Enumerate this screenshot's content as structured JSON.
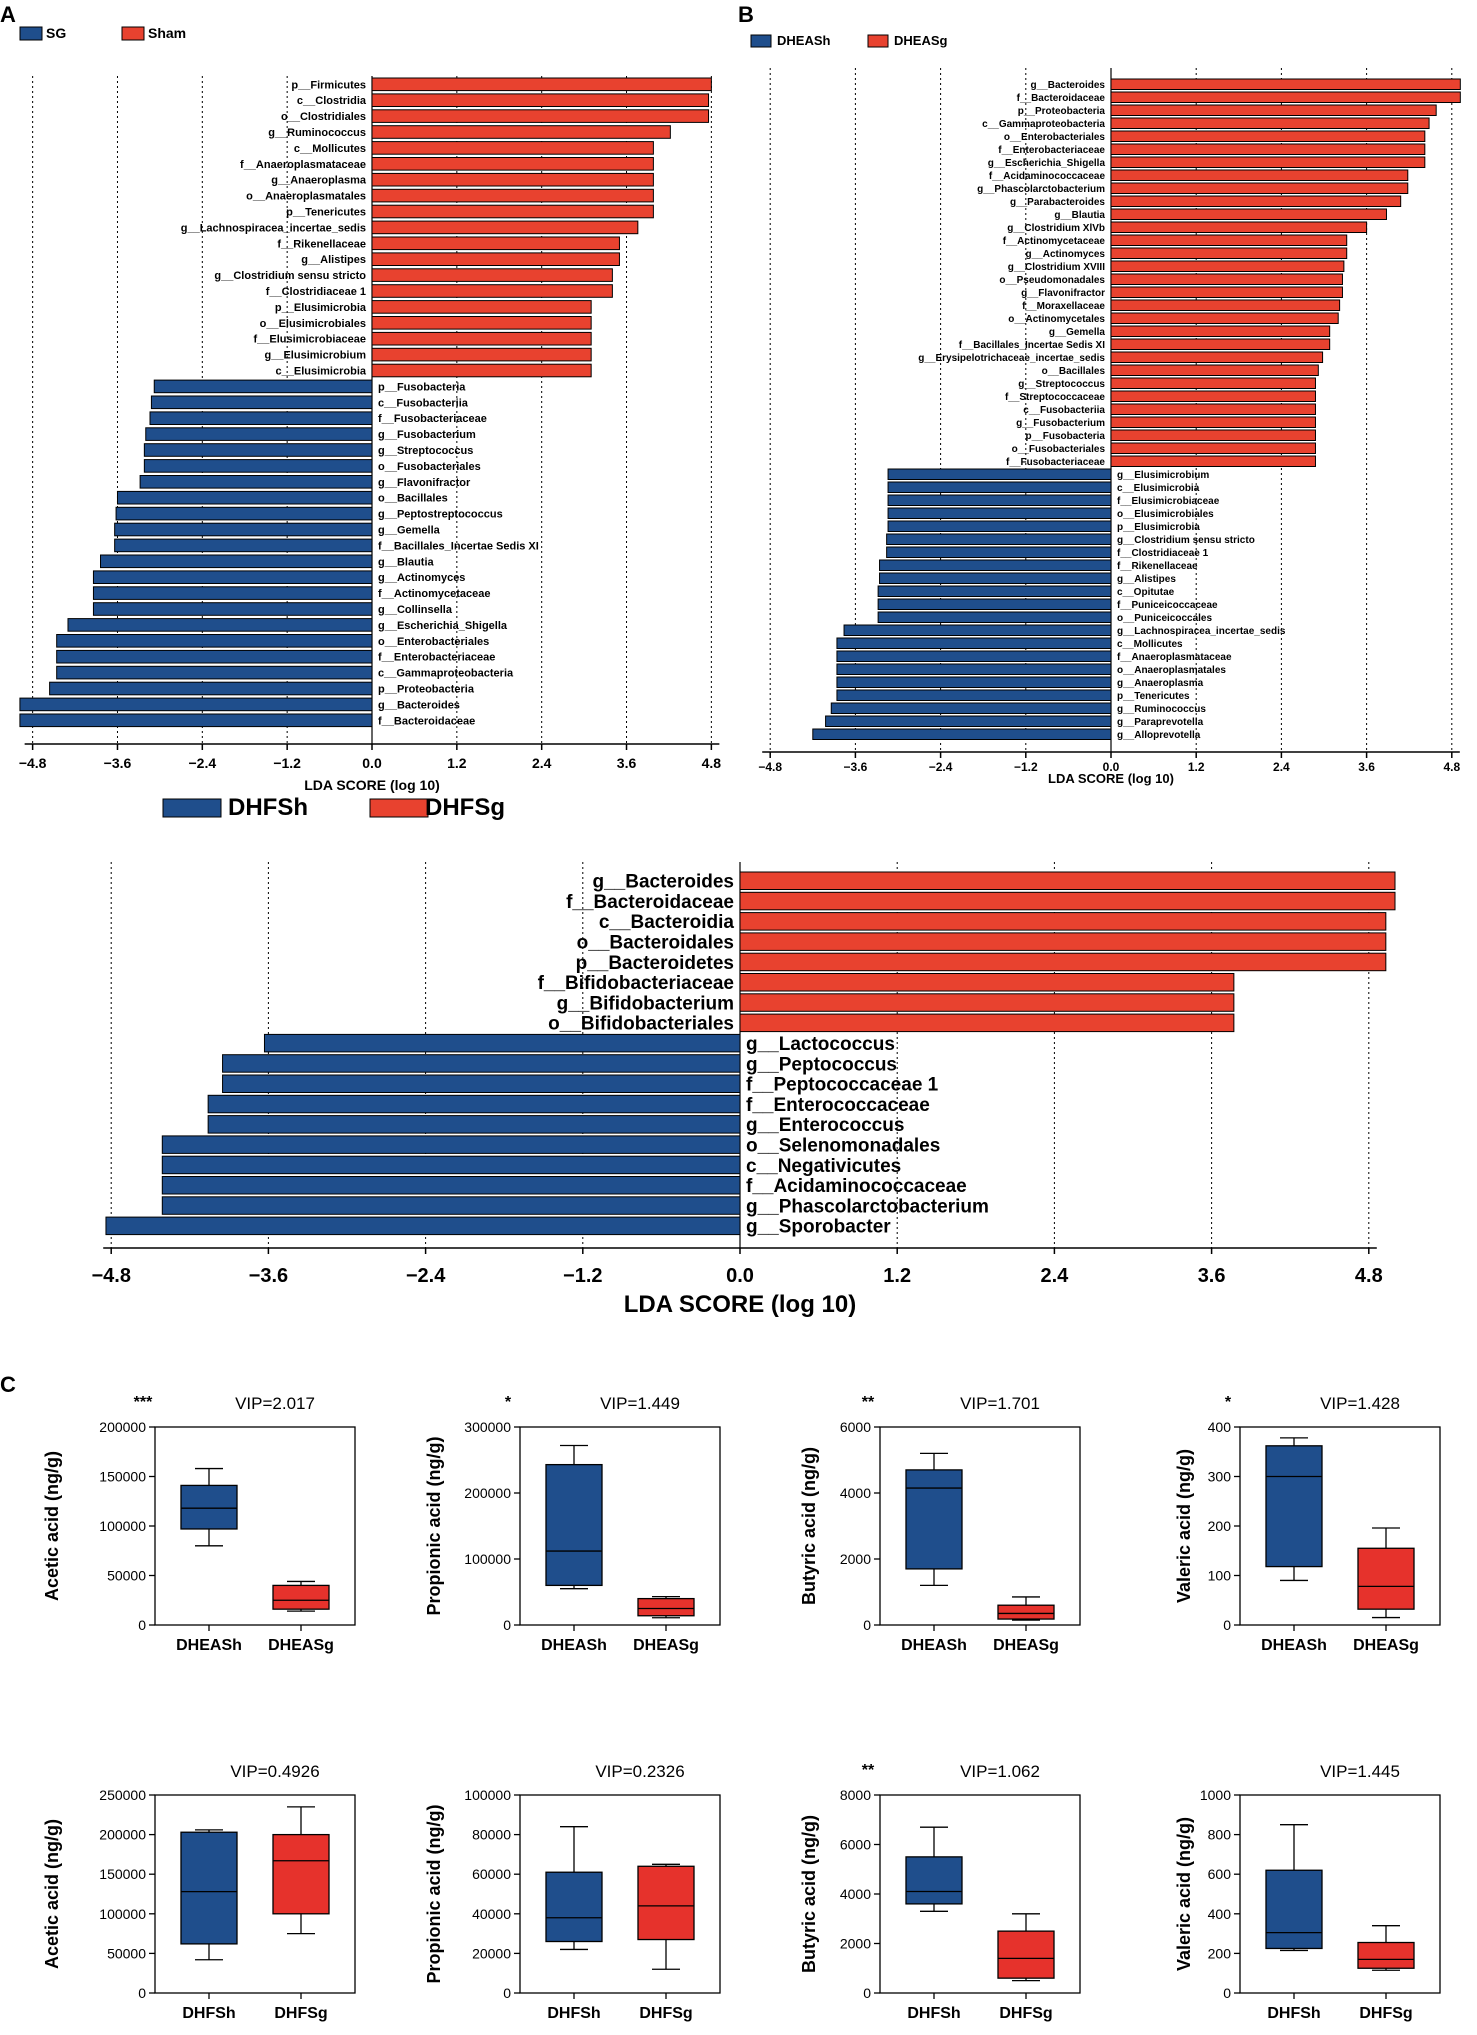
{
  "colors": {
    "blue": "#1f4e8c",
    "red": "#e8422f",
    "box_red": "#e6322c",
    "axis": "#000000"
  },
  "chart_data": [
    {
      "panel": "A",
      "type": "bar",
      "orientation": "horizontal",
      "xlabel": "LDA SCORE (log 10)",
      "xticks": [
        "-4.8",
        "-3.6",
        "-2.4",
        "-1.2",
        "0.0",
        "1.2",
        "2.4",
        "3.6",
        "4.8"
      ],
      "xlim": [
        -5.0,
        5.0
      ],
      "legend": [
        {
          "name": "SG",
          "color": "blue"
        },
        {
          "name": "Sham",
          "color": "red"
        }
      ],
      "bars": [
        {
          "label": "p__Firmicutes",
          "value": 4.8,
          "group": "Sham"
        },
        {
          "label": "c__Clostridia",
          "value": 4.76,
          "group": "Sham"
        },
        {
          "label": "o__Clostridiales",
          "value": 4.76,
          "group": "Sham"
        },
        {
          "label": "g__Ruminococcus",
          "value": 4.22,
          "group": "Sham"
        },
        {
          "label": "c__Mollicutes",
          "value": 3.98,
          "group": "Sham"
        },
        {
          "label": "f__Anaeroplasmataceae",
          "value": 3.98,
          "group": "Sham"
        },
        {
          "label": "g__Anaeroplasma",
          "value": 3.98,
          "group": "Sham"
        },
        {
          "label": "o__Anaeroplasmatales",
          "value": 3.98,
          "group": "Sham"
        },
        {
          "label": "p__Tenericutes",
          "value": 3.98,
          "group": "Sham"
        },
        {
          "label": "g__Lachnospiracea_incertae_sedis",
          "value": 3.76,
          "group": "Sham"
        },
        {
          "label": "f__Rikenellaceae",
          "value": 3.5,
          "group": "Sham"
        },
        {
          "label": "g__Alistipes",
          "value": 3.5,
          "group": "Sham"
        },
        {
          "label": "g__Clostridium sensu stricto",
          "value": 3.4,
          "group": "Sham"
        },
        {
          "label": "f__Clostridiaceae 1",
          "value": 3.4,
          "group": "Sham"
        },
        {
          "label": "p__Elusimicrobia",
          "value": 3.1,
          "group": "Sham"
        },
        {
          "label": "o__Elusimicrobiales",
          "value": 3.1,
          "group": "Sham"
        },
        {
          "label": "f__Elusimicrobiaceae",
          "value": 3.1,
          "group": "Sham"
        },
        {
          "label": "g__Elusimicrobium",
          "value": 3.1,
          "group": "Sham"
        },
        {
          "label": "c__Elusimicrobia",
          "value": 3.1,
          "group": "Sham"
        },
        {
          "label": "p__Fusobacteria",
          "value": -3.08,
          "group": "SG"
        },
        {
          "label": "c__Fusobacteriia",
          "value": -3.12,
          "group": "SG"
        },
        {
          "label": "f__Fusobacteriaceae",
          "value": -3.14,
          "group": "SG"
        },
        {
          "label": "g__Fusobacterium",
          "value": -3.2,
          "group": "SG"
        },
        {
          "label": "g__Streptococcus",
          "value": -3.22,
          "group": "SG"
        },
        {
          "label": "o__Fusobacteriales",
          "value": -3.22,
          "group": "SG"
        },
        {
          "label": "g__Flavonifractor",
          "value": -3.28,
          "group": "SG"
        },
        {
          "label": "o__Bacillales",
          "value": -3.6,
          "group": "SG"
        },
        {
          "label": "g__Peptostreptococcus",
          "value": -3.62,
          "group": "SG"
        },
        {
          "label": "g__Gemella",
          "value": -3.64,
          "group": "SG"
        },
        {
          "label": "f__Bacillales_Incertae Sedis XI",
          "value": -3.64,
          "group": "SG"
        },
        {
          "label": "g__Blautia",
          "value": -3.84,
          "group": "SG"
        },
        {
          "label": "g__Actinomyces",
          "value": -3.94,
          "group": "SG"
        },
        {
          "label": "f__Actinomycetaceae",
          "value": -3.94,
          "group": "SG"
        },
        {
          "label": "g__Collinsella",
          "value": -3.94,
          "group": "SG"
        },
        {
          "label": "g__Escherichia_Shigella",
          "value": -4.3,
          "group": "SG"
        },
        {
          "label": "o__Enterobacteriales",
          "value": -4.46,
          "group": "SG"
        },
        {
          "label": "f__Enterobacteriaceae",
          "value": -4.46,
          "group": "SG"
        },
        {
          "label": "c__Gammaproteobacteria",
          "value": -4.46,
          "group": "SG"
        },
        {
          "label": "p__Proteobacteria",
          "value": -4.56,
          "group": "SG"
        },
        {
          "label": "g__Bacteroides",
          "value": -4.98,
          "group": "SG"
        },
        {
          "label": "f__Bacteroidaceae",
          "value": -4.98,
          "group": "SG"
        }
      ]
    },
    {
      "panel": "B",
      "type": "bar",
      "orientation": "horizontal",
      "xlabel": "LDA SCORE (log 10)",
      "xticks": [
        "-4.8",
        "-3.6",
        "-2.4",
        "-1.2",
        "0.0",
        "1.2",
        "2.4",
        "3.6",
        "4.8"
      ],
      "xlim": [
        -5.0,
        5.0
      ],
      "legend": [
        {
          "name": "DHEASh",
          "color": "blue"
        },
        {
          "name": "DHEASg",
          "color": "red"
        }
      ],
      "bars": [
        {
          "label": "g__Bacteroides",
          "value": 4.92,
          "group": "DHEASg"
        },
        {
          "label": "f__Bacteroidaceae",
          "value": 4.92,
          "group": "DHEASg"
        },
        {
          "label": "p__Proteobacteria",
          "value": 4.58,
          "group": "DHEASg"
        },
        {
          "label": "c__Gammaproteobacteria",
          "value": 4.48,
          "group": "DHEASg"
        },
        {
          "label": "o__Enterobacteriales",
          "value": 4.42,
          "group": "DHEASg"
        },
        {
          "label": "f__Enterobacteriaceae",
          "value": 4.42,
          "group": "DHEASg"
        },
        {
          "label": "g__Escherichia_Shigella",
          "value": 4.42,
          "group": "DHEASg"
        },
        {
          "label": "f__Acidaminococcaceae",
          "value": 4.18,
          "group": "DHEASg"
        },
        {
          "label": "g__Phascolarctobacterium",
          "value": 4.18,
          "group": "DHEASg"
        },
        {
          "label": "g__Parabacteroides",
          "value": 4.08,
          "group": "DHEASg"
        },
        {
          "label": "g__Blautia",
          "value": 3.88,
          "group": "DHEASg"
        },
        {
          "label": "g__Clostridium XlVb",
          "value": 3.6,
          "group": "DHEASg"
        },
        {
          "label": "f__Actinomycetaceae",
          "value": 3.32,
          "group": "DHEASg"
        },
        {
          "label": "g__Actinomyces",
          "value": 3.32,
          "group": "DHEASg"
        },
        {
          "label": "g__Clostridium XVIII",
          "value": 3.28,
          "group": "DHEASg"
        },
        {
          "label": "o__Pseudomonadales",
          "value": 3.26,
          "group": "DHEASg"
        },
        {
          "label": "g__Flavonifractor",
          "value": 3.26,
          "group": "DHEASg"
        },
        {
          "label": "f__Moraxellaceae",
          "value": 3.22,
          "group": "DHEASg"
        },
        {
          "label": "o__Actinomycetales",
          "value": 3.2,
          "group": "DHEASg"
        },
        {
          "label": "g__Gemella",
          "value": 3.08,
          "group": "DHEASg"
        },
        {
          "label": "f__Bacillales_Incertae Sedis XI",
          "value": 3.08,
          "group": "DHEASg"
        },
        {
          "label": "g__Erysipelotrichaceae_incertae_sedis",
          "value": 2.98,
          "group": "DHEASg"
        },
        {
          "label": "o__Bacillales",
          "value": 2.92,
          "group": "DHEASg"
        },
        {
          "label": "g__Streptococcus",
          "value": 2.88,
          "group": "DHEASg"
        },
        {
          "label": "f__Streptococcaceae",
          "value": 2.88,
          "group": "DHEASg"
        },
        {
          "label": "c__Fusobacteriia",
          "value": 2.88,
          "group": "DHEASg"
        },
        {
          "label": "g__Fusobacterium",
          "value": 2.88,
          "group": "DHEASg"
        },
        {
          "label": "p__Fusobacteria",
          "value": 2.88,
          "group": "DHEASg"
        },
        {
          "label": "o__Fusobacteriales",
          "value": 2.88,
          "group": "DHEASg"
        },
        {
          "label": "f__Fusobacteriaceae",
          "value": 2.88,
          "group": "DHEASg"
        },
        {
          "label": "g__Elusimicrobium",
          "value": -3.14,
          "group": "DHEASh"
        },
        {
          "label": "c__Elusimicrobia",
          "value": -3.14,
          "group": "DHEASh"
        },
        {
          "label": "f__Elusimicrobiaceae",
          "value": -3.14,
          "group": "DHEASh"
        },
        {
          "label": "o__Elusimicrobiales",
          "value": -3.14,
          "group": "DHEASh"
        },
        {
          "label": "p__Elusimicrobia",
          "value": -3.14,
          "group": "DHEASh"
        },
        {
          "label": "g__Clostridium sensu stricto",
          "value": -3.16,
          "group": "DHEASh"
        },
        {
          "label": "f__Clostridiaceae 1",
          "value": -3.16,
          "group": "DHEASh"
        },
        {
          "label": "f__Rikenellaceae",
          "value": -3.26,
          "group": "DHEASh"
        },
        {
          "label": "g__Alistipes",
          "value": -3.26,
          "group": "DHEASh"
        },
        {
          "label": "c__Opitutae",
          "value": -3.28,
          "group": "DHEASh"
        },
        {
          "label": "f__Puniceicoccaceae",
          "value": -3.28,
          "group": "DHEASh"
        },
        {
          "label": "o__Puniceicoccales",
          "value": -3.28,
          "group": "DHEASh"
        },
        {
          "label": "g__Lachnospiracea_incertae_sedis",
          "value": -3.76,
          "group": "DHEASh"
        },
        {
          "label": "c__Mollicutes",
          "value": -3.86,
          "group": "DHEASh"
        },
        {
          "label": "f__Anaeroplasmataceae",
          "value": -3.86,
          "group": "DHEASh"
        },
        {
          "label": "o__Anaeroplasmatales",
          "value": -3.86,
          "group": "DHEASh"
        },
        {
          "label": "g__Anaeroplasma",
          "value": -3.86,
          "group": "DHEASh"
        },
        {
          "label": "p__Tenericutes",
          "value": -3.86,
          "group": "DHEASh"
        },
        {
          "label": "g__Ruminococcus",
          "value": -3.94,
          "group": "DHEASh"
        },
        {
          "label": "g__Paraprevotella",
          "value": -4.02,
          "group": "DHEASh"
        },
        {
          "label": "g__Alloprevotella",
          "value": -4.2,
          "group": "DHEASh"
        }
      ]
    },
    {
      "panel": "DHF",
      "type": "bar",
      "orientation": "horizontal",
      "xlabel": "LDA SCORE (log 10)",
      "xticks": [
        "-4.8",
        "-3.6",
        "-2.4",
        "-1.2",
        "0.0",
        "1.2",
        "2.4",
        "3.6",
        "4.8"
      ],
      "xlim": [
        -5.0,
        5.0
      ],
      "legend": [
        {
          "name": "DHFSh",
          "color": "blue"
        },
        {
          "name": "DHFSg",
          "color": "red"
        }
      ],
      "bars": [
        {
          "label": "g__Bacteroides",
          "value": 5.0,
          "group": "DHFSg"
        },
        {
          "label": "f__Bacteroidaceae",
          "value": 5.0,
          "group": "DHFSg"
        },
        {
          "label": "c__Bacteroidia",
          "value": 4.93,
          "group": "DHFSg"
        },
        {
          "label": "o__Bacteroidales",
          "value": 4.93,
          "group": "DHFSg"
        },
        {
          "label": "p__Bacteroidetes",
          "value": 4.93,
          "group": "DHFSg"
        },
        {
          "label": "f__Bifidobacteriaceae",
          "value": 3.77,
          "group": "DHFSg"
        },
        {
          "label": "g__Bifidobacterium",
          "value": 3.77,
          "group": "DHFSg"
        },
        {
          "label": "o__Bifidobacteriales",
          "value": 3.77,
          "group": "DHFSg"
        },
        {
          "label": "g__Lactococcus",
          "value": -3.63,
          "group": "DHFSh"
        },
        {
          "label": "g__Peptococcus",
          "value": -3.95,
          "group": "DHFSh"
        },
        {
          "label": "f__Peptococcaceae 1",
          "value": -3.95,
          "group": "DHFSh"
        },
        {
          "label": "f__Enterococcaceae",
          "value": -4.06,
          "group": "DHFSh"
        },
        {
          "label": "g__Enterococcus",
          "value": -4.06,
          "group": "DHFSh"
        },
        {
          "label": "o__Selenomonadales",
          "value": -4.41,
          "group": "DHFSh"
        },
        {
          "label": "c__Negativicutes",
          "value": -4.41,
          "group": "DHFSh"
        },
        {
          "label": "f__Acidaminococcaceae",
          "value": -4.41,
          "group": "DHFSh"
        },
        {
          "label": "g__Phascolarctobacterium",
          "value": -4.41,
          "group": "DHFSh"
        },
        {
          "label": "g__Sporobacter",
          "value": -4.84,
          "group": "DHFSh"
        }
      ]
    }
  ],
  "box_panel_label": "C",
  "boxplots": [
    {
      "ylabel": "Acetic acid (ng/g)",
      "sig": "***",
      "vip": "VIP=2.017",
      "ymax": 200000,
      "yticks": [
        "0",
        "50000",
        "100000",
        "150000",
        "200000"
      ],
      "groups": [
        "DHEASh",
        "DHEASg"
      ],
      "boxes": [
        {
          "min": 80000,
          "q1": 97000,
          "median": 118000,
          "q3": 141000,
          "max": 158000
        },
        {
          "min": 14000,
          "q1": 16000,
          "median": 25000,
          "q3": 40000,
          "max": 44000
        }
      ]
    },
    {
      "ylabel": "Propionic acid (ng/g)",
      "sig": "*",
      "vip": "VIP=1.449",
      "ymax": 300000,
      "yticks": [
        "0",
        "100000",
        "200000",
        "300000"
      ],
      "groups": [
        "DHEASh",
        "DHEASg"
      ],
      "boxes": [
        {
          "min": 55000,
          "q1": 60000,
          "median": 112000,
          "q3": 243000,
          "max": 272000
        },
        {
          "min": 11000,
          "q1": 14000,
          "median": 25000,
          "q3": 40000,
          "max": 43000
        }
      ]
    },
    {
      "ylabel": "Butyric acid (ng/g)",
      "sig": "**",
      "vip": "VIP=1.701",
      "ymax": 6000,
      "yticks": [
        "0",
        "2000",
        "4000",
        "6000"
      ],
      "groups": [
        "DHEASh",
        "DHEASg"
      ],
      "boxes": [
        {
          "min": 1200,
          "q1": 1700,
          "median": 4150,
          "q3": 4700,
          "max": 5200
        },
        {
          "min": 150,
          "q1": 180,
          "median": 350,
          "q3": 600,
          "max": 850
        }
      ]
    },
    {
      "ylabel": "Valeric acid (ng/g)",
      "sig": "*",
      "vip": "VIP=1.428",
      "ymax": 400,
      "yticks": [
        "0",
        "100",
        "200",
        "300",
        "400"
      ],
      "groups": [
        "DHEASh",
        "DHEASg"
      ],
      "boxes": [
        {
          "min": 90,
          "q1": 118,
          "median": 300,
          "q3": 362,
          "max": 378
        },
        {
          "min": 15,
          "q1": 32,
          "median": 78,
          "q3": 155,
          "max": 196
        }
      ]
    },
    {
      "ylabel": "Acetic acid (ng/g)",
      "sig": "",
      "vip": "VIP=0.4926",
      "ymax": 250000,
      "yticks": [
        "0",
        "50000",
        "100000",
        "150000",
        "200000",
        "250000"
      ],
      "groups": [
        "DHFSh",
        "DHFSg"
      ],
      "boxes": [
        {
          "min": 42000,
          "q1": 62000,
          "median": 128000,
          "q3": 203000,
          "max": 206000
        },
        {
          "min": 75000,
          "q1": 100000,
          "median": 167000,
          "q3": 200000,
          "max": 235000
        }
      ]
    },
    {
      "ylabel": "Propionic acid (ng/g)",
      "sig": "",
      "vip": "VIP=0.2326",
      "ymax": 100000,
      "yticks": [
        "0",
        "20000",
        "40000",
        "60000",
        "80000",
        "100000"
      ],
      "groups": [
        "DHFSh",
        "DHFSg"
      ],
      "boxes": [
        {
          "min": 22000,
          "q1": 26000,
          "median": 38000,
          "q3": 61000,
          "max": 84000
        },
        {
          "min": 12000,
          "q1": 27000,
          "median": 44000,
          "q3": 64000,
          "max": 65000
        }
      ]
    },
    {
      "ylabel": "Butyric acid (ng/g)",
      "sig": "**",
      "vip": "VIP=1.062",
      "ymax": 8000,
      "yticks": [
        "0",
        "2000",
        "4000",
        "6000",
        "8000"
      ],
      "groups": [
        "DHFSh",
        "DHFSg"
      ],
      "boxes": [
        {
          "min": 3300,
          "q1": 3600,
          "median": 4100,
          "q3": 5500,
          "max": 6700
        },
        {
          "min": 500,
          "q1": 600,
          "median": 1400,
          "q3": 2500,
          "max": 3200
        }
      ]
    },
    {
      "ylabel": "Valeric acid (ng/g)",
      "sig": "",
      "vip": "VIP=1.445",
      "ymax": 1000,
      "yticks": [
        "0",
        "200",
        "400",
        "600",
        "800",
        "1000"
      ],
      "groups": [
        "DHFSh",
        "DHFSg"
      ],
      "boxes": [
        {
          "min": 215,
          "q1": 225,
          "median": 305,
          "q3": 620,
          "max": 850
        },
        {
          "min": 115,
          "q1": 125,
          "median": 170,
          "q3": 255,
          "max": 340
        }
      ]
    }
  ]
}
